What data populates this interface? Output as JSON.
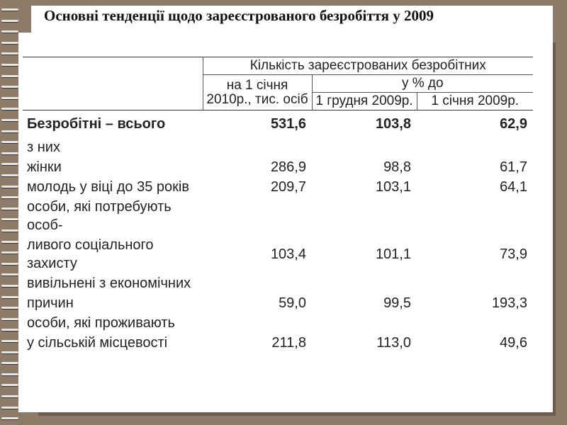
{
  "title": "Основні тенденції щодо зареєстрованого безробіття у 2009",
  "table": {
    "header_main": "Кількість зареєстрованих безробітних",
    "header_col1": "на 1 січня 2010р., тис. осіб",
    "header_pct": "у % до",
    "header_col2": "1 грудня 2009р.",
    "header_col3": "1 січня 2009р.",
    "rows": [
      {
        "label": "Безробітні – всього",
        "v1": "531,6",
        "v2": "103,8",
        "v3": "62,9"
      },
      {
        "label": "з них",
        "v1": "",
        "v2": "",
        "v3": ""
      },
      {
        "label": "жінки",
        "v1": "286,9",
        "v2": "98,8",
        "v3": "61,7"
      },
      {
        "label": "молодь у віці до 35 років",
        "v1": "209,7",
        "v2": "103,1",
        "v3": "64,1"
      },
      {
        "label": "особи, які потребують особ-",
        "v1": "",
        "v2": "",
        "v3": ""
      },
      {
        "label": "ливого соціального захисту",
        "v1": "103,4",
        "v2": "101,1",
        "v3": "73,9"
      },
      {
        "label": "вивільнені з економічних",
        "v1": "",
        "v2": "",
        "v3": ""
      },
      {
        "label": "причин",
        "v1": "59,0",
        "v2": "99,5",
        "v3": "193,3"
      },
      {
        "label": "особи, які проживають",
        "v1": "",
        "v2": "",
        "v3": ""
      },
      {
        "label": "у сільській місцевості",
        "v1": "211,8",
        "v2": "113,0",
        "v3": "49,6"
      }
    ]
  }
}
